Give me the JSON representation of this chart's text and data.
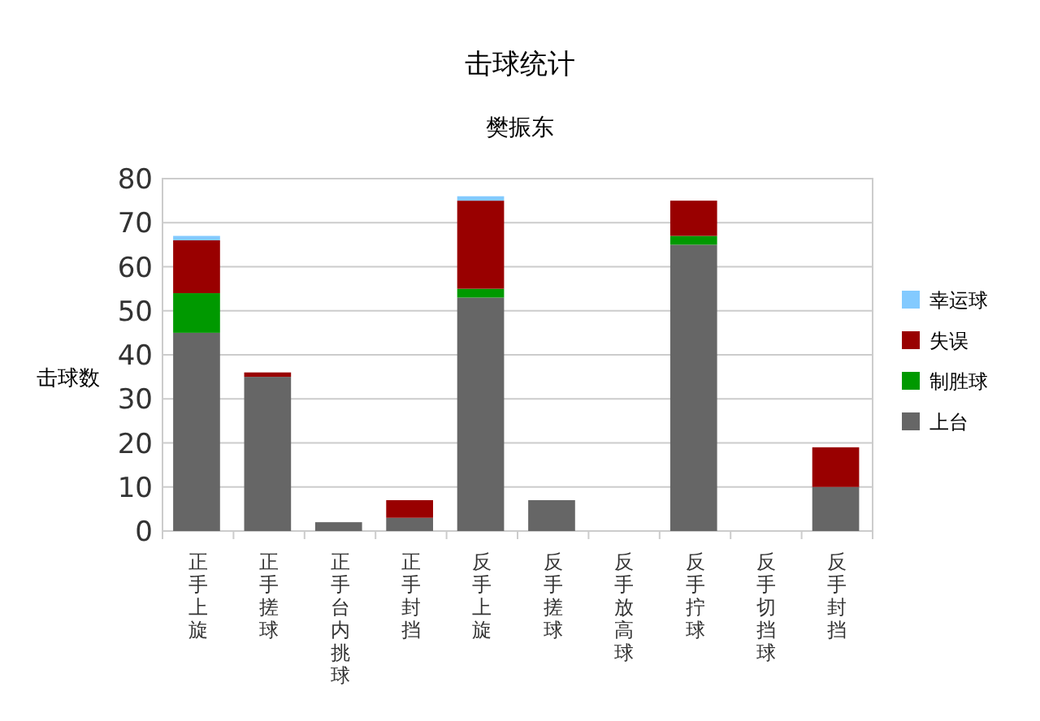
{
  "chart_data": {
    "type": "bar",
    "title": "击球统计",
    "subtitle": "樊振东",
    "ylabel": "击球数",
    "categories": [
      "正手上旋",
      "正手搓球",
      "正手台内挑球",
      "正手封挡",
      "反手上旋",
      "反手搓球",
      "反手放高球",
      "反手拧球",
      "反手切挡球",
      "反手封挡"
    ],
    "stacked": true,
    "series": [
      {
        "name": "上台",
        "color": "#666666",
        "values": [
          45,
          35,
          2,
          3,
          53,
          7,
          0,
          65,
          0,
          10
        ]
      },
      {
        "name": "制胜球",
        "color": "#009900",
        "values": [
          9,
          0,
          0,
          0,
          2,
          0,
          0,
          2,
          0,
          0
        ]
      },
      {
        "name": "失误",
        "color": "#990000",
        "values": [
          12,
          1,
          0,
          4,
          20,
          0,
          0,
          8,
          0,
          9
        ]
      },
      {
        "name": "幸运球",
        "color": "#83caff",
        "values": [
          1,
          0,
          0,
          0,
          1,
          0,
          0,
          0,
          0,
          0
        ]
      }
    ],
    "ylim": [
      0,
      80
    ],
    "yticks": [
      0,
      10,
      20,
      30,
      40,
      50,
      60,
      70,
      80
    ],
    "grid": "y",
    "legend": "right"
  }
}
